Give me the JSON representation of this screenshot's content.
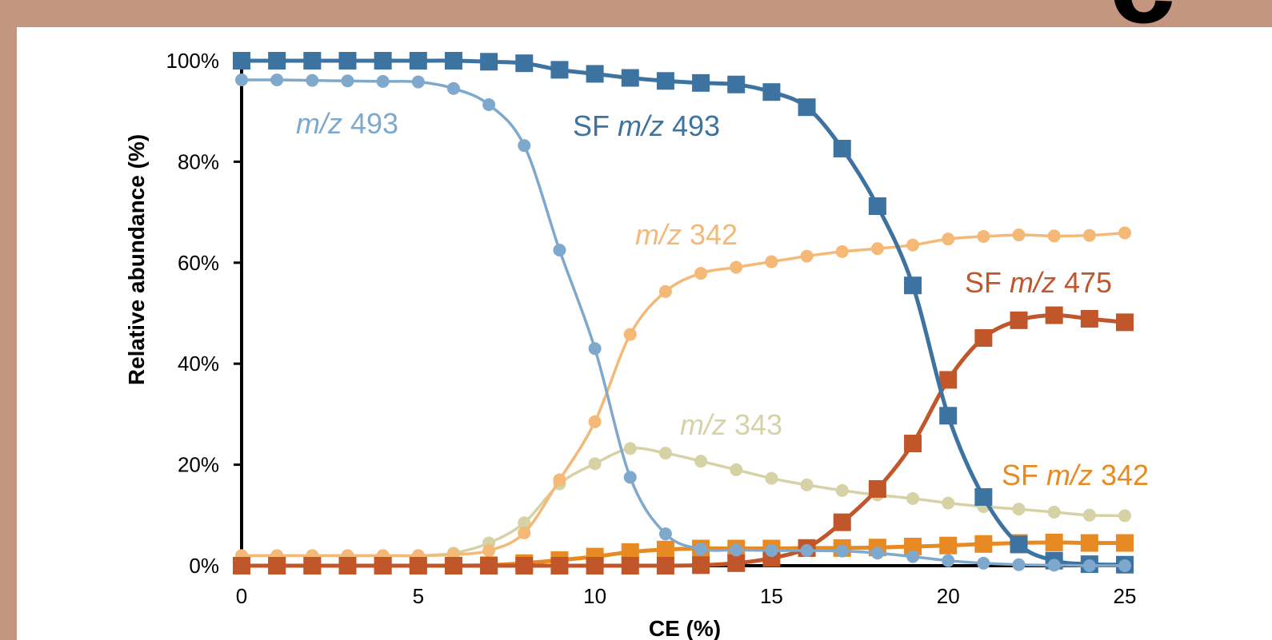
{
  "panel_letter": "c",
  "chart_data": {
    "type": "line",
    "xlabel": "CE (%)",
    "ylabel": "Relative abundance (%)",
    "xlim": [
      0,
      25
    ],
    "ylim": [
      0,
      100
    ],
    "x_ticks": [
      "0",
      "5",
      "10",
      "15",
      "20",
      "25"
    ],
    "y_ticks": [
      "0%",
      "20%",
      "40%",
      "60%",
      "80%",
      "100%"
    ],
    "grid": false,
    "x": [
      0,
      1,
      2,
      3,
      4,
      5,
      6,
      7,
      8,
      9,
      10,
      11,
      12,
      13,
      14,
      15,
      16,
      17,
      18,
      19,
      20,
      21,
      22,
      23,
      24,
      25
    ],
    "series": [
      {
        "key": "sf493",
        "label_prefix": "SF ",
        "label_mz": "m/z",
        "label_num": " 493",
        "color": "#3c73a0",
        "marker": "square",
        "values": [
          100,
          100,
          100,
          100,
          100,
          100,
          100,
          99.8,
          99.5,
          98.2,
          97.4,
          96.6,
          96.0,
          95.6,
          95.3,
          93.8,
          90.8,
          82.6,
          71.2,
          55.5,
          29.7,
          13.6,
          4.2,
          1.0,
          0.3,
          0.2
        ]
      },
      {
        "key": "mz493",
        "label_prefix": "",
        "label_mz": "m/z",
        "label_num": " 493",
        "color": "#7ea9cd",
        "marker": "circle",
        "values": [
          96.2,
          96.2,
          96.1,
          96.0,
          95.9,
          95.8,
          94.5,
          91.3,
          83.2,
          62.5,
          43.0,
          17.5,
          6.3,
          3.3,
          3.1,
          3.0,
          3.0,
          2.9,
          2.5,
          1.8,
          1.0,
          0.5,
          0.2,
          0.1,
          0.0,
          0.0
        ]
      },
      {
        "key": "mz342",
        "label_prefix": "",
        "label_mz": "m/z",
        "label_num": " 342",
        "color": "#f4b877",
        "marker": "circle",
        "values": [
          2.0,
          2.0,
          2.0,
          2.0,
          2.0,
          2.0,
          2.2,
          3.0,
          6.5,
          17.0,
          28.5,
          45.8,
          54.3,
          57.9,
          59.1,
          60.2,
          61.3,
          62.2,
          62.8,
          63.5,
          64.7,
          65.2,
          65.5,
          65.3,
          65.4,
          65.9
        ]
      },
      {
        "key": "mz343",
        "label_prefix": "",
        "label_mz": "m/z",
        "label_num": " 343",
        "color": "#d6d2a6",
        "marker": "circle",
        "values": [
          2.0,
          2.0,
          2.0,
          2.0,
          2.0,
          2.0,
          2.5,
          4.5,
          8.5,
          16.2,
          20.2,
          23.2,
          22.3,
          20.7,
          19.0,
          17.3,
          16.0,
          14.9,
          14.0,
          13.3,
          12.4,
          11.7,
          11.2,
          10.6,
          10.0,
          9.9
        ]
      },
      {
        "key": "sf342",
        "label_prefix": "SF ",
        "label_mz": "m/z",
        "label_num": " 342",
        "color": "#e88a23",
        "marker": "square",
        "values": [
          0,
          0,
          0,
          0,
          0,
          0,
          0,
          0.1,
          0.5,
          1.1,
          1.8,
          2.7,
          3.2,
          3.4,
          3.4,
          3.4,
          3.5,
          3.5,
          3.6,
          3.8,
          4.0,
          4.3,
          4.5,
          4.6,
          4.5,
          4.5
        ]
      },
      {
        "key": "sf475",
        "label_prefix": "SF ",
        "label_mz": "m/z",
        "label_num": " 475",
        "color": "#c0562a",
        "marker": "square",
        "values": [
          0,
          0,
          0,
          0,
          0,
          0,
          0,
          0,
          0,
          0,
          0,
          0,
          0,
          0.1,
          0.5,
          1.5,
          3.5,
          8.6,
          15.2,
          24.2,
          36.8,
          45.1,
          48.6,
          49.6,
          48.9,
          48.2
        ]
      }
    ]
  }
}
